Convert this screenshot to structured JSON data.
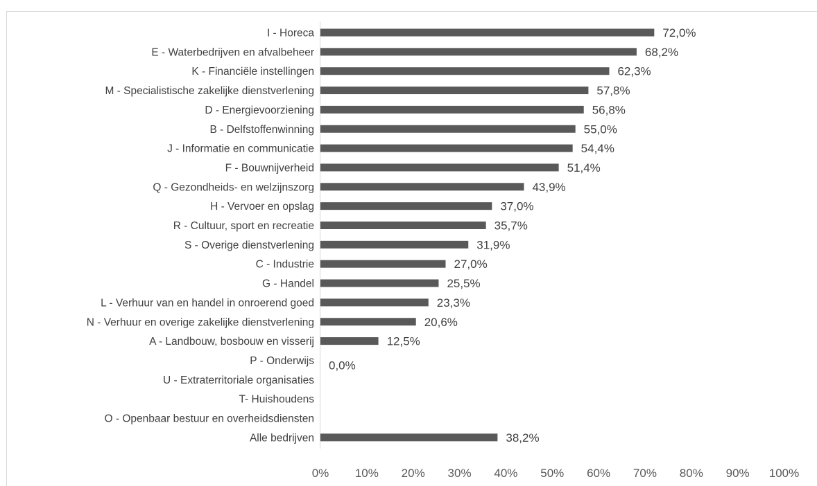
{
  "title": "",
  "chart_data": {
    "type": "bar",
    "orientation": "horizontal",
    "categories": [
      "I - Horeca",
      "E - Waterbedrijven en afvalbeheer",
      "K - Financiële instellingen",
      "M - Specialistische zakelijke dienstverlening",
      "D - Energievoorziening",
      "B - Delfstoffenwinning",
      "J - Informatie en communicatie",
      "F - Bouwnijverheid",
      "Q - Gezondheids- en welzijnszorg",
      "H - Vervoer en opslag",
      "R - Cultuur, sport en recreatie",
      "S - Overige dienstverlening",
      "C - Industrie",
      "G - Handel",
      "L - Verhuur van en handel in onroerend goed",
      "N - Verhuur en overige zakelijke dienstverlening",
      "A - Landbouw, bosbouw en visserij",
      "P - Onderwijs",
      "U - Extraterritoriale organisaties",
      "T- Huishoudens",
      "O - Openbaar bestuur en overheidsdiensten",
      "Alle bedrijven"
    ],
    "values": [
      72.0,
      68.2,
      62.3,
      57.8,
      56.8,
      55.0,
      54.4,
      51.4,
      43.9,
      37.0,
      35.7,
      31.9,
      27.0,
      25.5,
      23.3,
      20.6,
      12.5,
      0.0,
      null,
      null,
      null,
      38.2
    ],
    "value_labels": [
      "72,0%",
      "68,2%",
      "62,3%",
      "57,8%",
      "56,8%",
      "55,0%",
      "54,4%",
      "51,4%",
      "43,9%",
      "37,0%",
      "35,7%",
      "31,9%",
      "27,0%",
      "25,5%",
      "23,3%",
      "20,6%",
      "12,5%",
      "0,0%",
      "",
      "",
      "",
      "38,2%"
    ],
    "x_ticks": [
      "0%",
      "10%",
      "20%",
      "30%",
      "40%",
      "50%",
      "60%",
      "70%",
      "80%",
      "90%",
      "100%"
    ],
    "xlim": [
      0,
      100
    ],
    "xlabel": "",
    "ylabel": "",
    "grid": false,
    "legend": "none",
    "bar_color": "#595959"
  }
}
